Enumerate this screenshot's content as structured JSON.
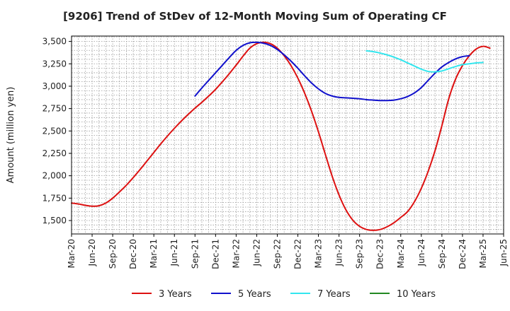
{
  "chart_data": {
    "type": "line",
    "title": "[9206]  Trend of StDev of 12-Month Moving Sum of Operating CF",
    "xlabel": "",
    "ylabel": "Amount (million yen)",
    "ylim": [
      1350,
      3560
    ],
    "y_ticks": [
      1500,
      1750,
      2000,
      2250,
      2500,
      2750,
      3000,
      3250,
      3500
    ],
    "y_tick_labels": [
      "1,500",
      "1,750",
      "2,000",
      "2,250",
      "2,500",
      "2,750",
      "3,000",
      "3,250",
      "3,500"
    ],
    "x_tick_labels": [
      "Mar-20",
      "Jun-20",
      "Sep-20",
      "Dec-20",
      "Mar-21",
      "Jun-21",
      "Sep-21",
      "Dec-21",
      "Mar-22",
      "Jun-22",
      "Sep-22",
      "Dec-22",
      "Mar-23",
      "Jun-23",
      "Sep-23",
      "Dec-23",
      "Mar-24",
      "Jun-24",
      "Sep-24",
      "Dec-24",
      "Mar-25",
      "Jun-25"
    ],
    "grid": true,
    "legend_position": "bottom",
    "series": [
      {
        "name": "3 Years",
        "color": "#dd1111",
        "points": [
          [
            0,
            1695
          ],
          [
            1,
            1685
          ],
          [
            2,
            1670
          ],
          [
            3,
            1660
          ],
          [
            4,
            1665
          ],
          [
            5,
            1695
          ],
          [
            6,
            1750
          ],
          [
            7,
            1820
          ],
          [
            8,
            1895
          ],
          [
            9,
            1980
          ],
          [
            10,
            2070
          ],
          [
            11,
            2165
          ],
          [
            12,
            2260
          ],
          [
            13,
            2355
          ],
          [
            14,
            2445
          ],
          [
            15,
            2530
          ],
          [
            16,
            2610
          ],
          [
            17,
            2685
          ],
          [
            18,
            2755
          ],
          [
            19,
            2820
          ],
          [
            20,
            2890
          ],
          [
            21,
            2965
          ],
          [
            22,
            3050
          ],
          [
            23,
            3140
          ],
          [
            24,
            3235
          ],
          [
            25,
            3335
          ],
          [
            26,
            3425
          ],
          [
            27,
            3475
          ],
          [
            28,
            3490
          ],
          [
            29,
            3475
          ],
          [
            30,
            3425
          ],
          [
            31,
            3340
          ],
          [
            32,
            3230
          ],
          [
            33,
            3090
          ],
          [
            34,
            2920
          ],
          [
            35,
            2720
          ],
          [
            36,
            2490
          ],
          [
            37,
            2240
          ],
          [
            38,
            1995
          ],
          [
            39,
            1785
          ],
          [
            40,
            1620
          ],
          [
            41,
            1505
          ],
          [
            42,
            1435
          ],
          [
            43,
            1400
          ],
          [
            44,
            1390
          ],
          [
            45,
            1400
          ],
          [
            46,
            1430
          ],
          [
            47,
            1475
          ],
          [
            48,
            1535
          ],
          [
            49,
            1600
          ],
          [
            50,
            1710
          ],
          [
            51,
            1860
          ],
          [
            52,
            2050
          ],
          [
            53,
            2280
          ],
          [
            54,
            2560
          ],
          [
            55,
            2860
          ],
          [
            56,
            3080
          ],
          [
            57,
            3230
          ],
          [
            58,
            3340
          ],
          [
            59,
            3415
          ],
          [
            60,
            3445
          ],
          [
            61,
            3425
          ]
        ]
      },
      {
        "name": "5 Years",
        "color": "#1111cc",
        "points": [
          [
            18,
            2890
          ],
          [
            19,
            2980
          ],
          [
            20,
            3065
          ],
          [
            21,
            3150
          ],
          [
            22,
            3235
          ],
          [
            23,
            3320
          ],
          [
            24,
            3400
          ],
          [
            25,
            3455
          ],
          [
            26,
            3485
          ],
          [
            27,
            3490
          ],
          [
            28,
            3480
          ],
          [
            29,
            3455
          ],
          [
            30,
            3410
          ],
          [
            31,
            3350
          ],
          [
            32,
            3280
          ],
          [
            33,
            3200
          ],
          [
            34,
            3115
          ],
          [
            35,
            3035
          ],
          [
            36,
            2970
          ],
          [
            37,
            2920
          ],
          [
            38,
            2890
          ],
          [
            39,
            2875
          ],
          [
            40,
            2870
          ],
          [
            41,
            2865
          ],
          [
            42,
            2860
          ],
          [
            43,
            2850
          ],
          [
            44,
            2845
          ],
          [
            45,
            2840
          ],
          [
            46,
            2840
          ],
          [
            47,
            2845
          ],
          [
            48,
            2860
          ],
          [
            49,
            2885
          ],
          [
            50,
            2925
          ],
          [
            51,
            2985
          ],
          [
            52,
            3065
          ],
          [
            53,
            3145
          ],
          [
            54,
            3215
          ],
          [
            55,
            3265
          ],
          [
            56,
            3305
          ],
          [
            57,
            3330
          ],
          [
            58,
            3340
          ]
        ]
      },
      {
        "name": "7 Years",
        "color": "#33e6ee",
        "points": [
          [
            43,
            3395
          ],
          [
            44,
            3385
          ],
          [
            45,
            3370
          ],
          [
            46,
            3350
          ],
          [
            47,
            3325
          ],
          [
            48,
            3295
          ],
          [
            49,
            3260
          ],
          [
            50,
            3225
          ],
          [
            51,
            3190
          ],
          [
            52,
            3165
          ],
          [
            53,
            3160
          ],
          [
            54,
            3170
          ],
          [
            55,
            3195
          ],
          [
            56,
            3220
          ],
          [
            57,
            3240
          ],
          [
            58,
            3250
          ],
          [
            59,
            3260
          ],
          [
            60,
            3265
          ]
        ]
      },
      {
        "name": "10 Years",
        "color": "#228822",
        "points": []
      }
    ]
  }
}
